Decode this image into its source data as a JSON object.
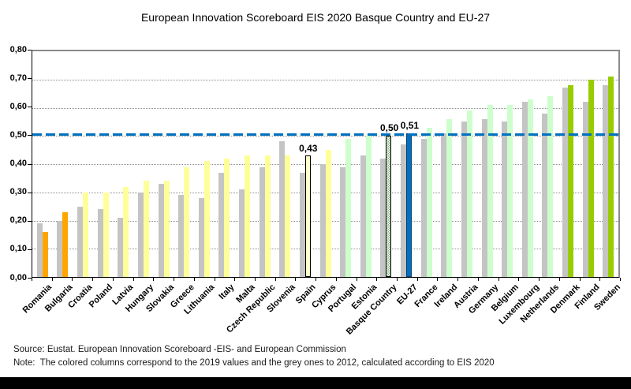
{
  "title": "European Innovation Scoreboard EIS 2020 Basque Country and EU-27",
  "footer": {
    "source": "Source: Eustat. European Innovation Scoreboard -EIS- and European Commission",
    "note": "Note:  The colored columns correspond to the 2019 values and the grey ones to 2012, calculated according to EIS 2020"
  },
  "colors": {
    "grey_2012": "#c4c4c4",
    "orange": "#ffa500",
    "yellow": "#ffff99",
    "pale_yellow_outlined": "#ffffcc",
    "light_green": "#ccffcc",
    "olive_green": "#99cc00",
    "blue": "#0070c0",
    "hatch_green": "#7fb77f",
    "reference_line": "#0070c0",
    "axis": "#000000",
    "grid": "#8c8c8c"
  },
  "chart_data": {
    "type": "bar",
    "title": "European Innovation Scoreboard EIS 2020 Basque Country and EU-27",
    "xlabel": "",
    "ylabel": "",
    "ylim": [
      0,
      0.8
    ],
    "ytick_step": 0.1,
    "ytick_labels": [
      "0,00",
      "0,10",
      "0,20",
      "0,30",
      "0,40",
      "0,50",
      "0,60",
      "0,70",
      "0,80"
    ],
    "grid": "dotted horizontal",
    "legend": "none",
    "note_meaning": "colored columns = 2019 values, grey columns = 2012 values, EIS 2020 methodology",
    "reference_line": {
      "value": 0.505,
      "style": "dashed",
      "color": "#0070c0",
      "meaning": "EU-27 2019 level"
    },
    "categories": [
      "Romania",
      "Bulgaria",
      "Croatia",
      "Poland",
      "Latvia",
      "Hungary",
      "Slovakia",
      "Greece",
      "Lithuania",
      "Italy",
      "Malta",
      "Czech Republic",
      "Slovenia",
      "Spain",
      "Cyprus",
      "Portugal",
      "Estonia",
      "Basque Country",
      "EU-27",
      "France",
      "Ireland",
      "Austria",
      "Germany",
      "Belgium",
      "Luxembourg",
      "Netherlands",
      "Denmark",
      "Finland",
      "Sweden"
    ],
    "series": [
      {
        "name": "2012",
        "values": [
          0.19,
          0.2,
          0.25,
          0.24,
          0.21,
          0.3,
          0.33,
          0.29,
          0.28,
          0.37,
          0.31,
          0.39,
          0.48,
          0.37,
          0.4,
          0.39,
          0.43,
          0.42,
          0.47,
          0.49,
          0.51,
          0.55,
          0.56,
          0.55,
          0.62,
          0.58,
          0.67,
          0.62,
          0.68
        ]
      },
      {
        "name": "2019",
        "values": [
          0.16,
          0.23,
          0.3,
          0.3,
          0.32,
          0.34,
          0.34,
          0.39,
          0.41,
          0.42,
          0.43,
          0.43,
          0.43,
          0.43,
          0.45,
          0.49,
          0.5,
          0.5,
          0.51,
          0.53,
          0.56,
          0.59,
          0.61,
          0.61,
          0.63,
          0.64,
          0.68,
          0.7,
          0.71
        ]
      }
    ],
    "style_2019": [
      "orange",
      "orange",
      "yellow",
      "yellow",
      "yellow",
      "yellow",
      "yellow",
      "yellow",
      "yellow",
      "yellow",
      "yellow",
      "yellow",
      "yellow",
      "spain",
      "yellow",
      "lightgreen",
      "lightgreen",
      "hatch",
      "blue",
      "lightgreen",
      "lightgreen",
      "lightgreen",
      "lightgreen",
      "lightgreen",
      "lightgreen",
      "lightgreen",
      "olive",
      "olive",
      "olive"
    ],
    "data_labels": [
      {
        "category": "Spain",
        "text": "0,43",
        "value": 0.43
      },
      {
        "category": "Basque Country",
        "text": "0,50",
        "value": 0.5
      },
      {
        "category": "EU-27",
        "text": "0,51",
        "value": 0.51
      }
    ]
  }
}
